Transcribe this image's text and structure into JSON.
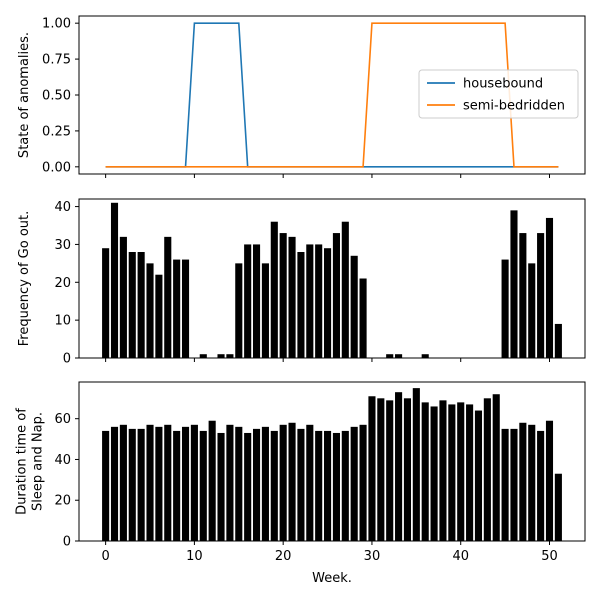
{
  "chart_data": [
    {
      "type": "line",
      "title": "",
      "xlabel": "",
      "ylabel": "State of anomalies.",
      "xlim": [
        -3,
        54
      ],
      "ylim": [
        -0.05,
        1.05
      ],
      "yticks": [
        0.0,
        0.25,
        0.5,
        0.75,
        1.0
      ],
      "ytick_labels": [
        "0.00",
        "0.25",
        "0.50",
        "0.75",
        "1.00"
      ],
      "legend_position": "center-right",
      "series": [
        {
          "name": "housebound",
          "color": "#1f77b4",
          "x": [
            0,
            1,
            2,
            3,
            4,
            5,
            6,
            7,
            8,
            9,
            10,
            11,
            12,
            13,
            14,
            15,
            16,
            17,
            18,
            19,
            20,
            21,
            22,
            23,
            24,
            25,
            26,
            27,
            28,
            29,
            30,
            31,
            32,
            33,
            34,
            35,
            36,
            37,
            38,
            39,
            40,
            41,
            42,
            43,
            44,
            45,
            46,
            47,
            48,
            49,
            50,
            51
          ],
          "values": [
            0,
            0,
            0,
            0,
            0,
            0,
            0,
            0,
            0,
            0,
            1,
            1,
            1,
            1,
            1,
            1,
            0,
            0,
            0,
            0,
            0,
            0,
            0,
            0,
            0,
            0,
            0,
            0,
            0,
            0,
            0,
            0,
            0,
            0,
            0,
            0,
            0,
            0,
            0,
            0,
            0,
            0,
            0,
            0,
            0,
            0,
            0,
            0,
            0,
            0,
            0,
            0
          ]
        },
        {
          "name": "semi-bedridden",
          "color": "#ff7f0e",
          "x": [
            0,
            1,
            2,
            3,
            4,
            5,
            6,
            7,
            8,
            9,
            10,
            11,
            12,
            13,
            14,
            15,
            16,
            17,
            18,
            19,
            20,
            21,
            22,
            23,
            24,
            25,
            26,
            27,
            28,
            29,
            30,
            31,
            32,
            33,
            34,
            35,
            36,
            37,
            38,
            39,
            40,
            41,
            42,
            43,
            44,
            45,
            46,
            47,
            48,
            49,
            50,
            51
          ],
          "values": [
            0,
            0,
            0,
            0,
            0,
            0,
            0,
            0,
            0,
            0,
            0,
            0,
            0,
            0,
            0,
            0,
            0,
            0,
            0,
            0,
            0,
            0,
            0,
            0,
            0,
            0,
            0,
            0,
            0,
            0,
            1,
            1,
            1,
            1,
            1,
            1,
            1,
            1,
            1,
            1,
            1,
            1,
            1,
            1,
            1,
            1,
            0,
            0,
            0,
            0,
            0,
            0
          ]
        }
      ]
    },
    {
      "type": "bar",
      "title": "",
      "xlabel": "",
      "ylabel": "Frequency of Go out.",
      "xlim": [
        -3,
        54
      ],
      "ylim": [
        0,
        42
      ],
      "yticks": [
        0,
        10,
        20,
        30,
        40
      ],
      "ytick_labels": [
        "0",
        "10",
        "20",
        "30",
        "40"
      ],
      "color": "#000000",
      "x": [
        0,
        1,
        2,
        3,
        4,
        5,
        6,
        7,
        8,
        9,
        10,
        11,
        12,
        13,
        14,
        15,
        16,
        17,
        18,
        19,
        20,
        21,
        22,
        23,
        24,
        25,
        26,
        27,
        28,
        29,
        30,
        31,
        32,
        33,
        34,
        35,
        36,
        37,
        38,
        39,
        40,
        41,
        42,
        43,
        44,
        45,
        46,
        47,
        48,
        49,
        50,
        51
      ],
      "values": [
        29,
        41,
        32,
        28,
        28,
        25,
        22,
        32,
        26,
        26,
        0,
        1,
        0,
        1,
        1,
        25,
        30,
        30,
        25,
        36,
        33,
        32,
        28,
        30,
        30,
        29,
        33,
        36,
        27,
        21,
        0,
        0,
        1,
        1,
        0,
        0,
        1,
        0,
        0,
        0,
        0,
        0,
        0,
        0,
        0,
        26,
        39,
        33,
        25,
        33,
        37,
        9
      ]
    },
    {
      "type": "bar",
      "title": "",
      "xlabel": "Week.",
      "ylabel": "Duration time of\nSleep and Nap.",
      "ylabel_lines": [
        "Duration time of",
        "Sleep and Nap."
      ],
      "xlim": [
        -3,
        54
      ],
      "ylim": [
        0,
        78
      ],
      "yticks": [
        0,
        20,
        40,
        60
      ],
      "ytick_labels": [
        "0",
        "20",
        "40",
        "60"
      ],
      "xticks": [
        0,
        10,
        20,
        30,
        40,
        50
      ],
      "xtick_labels": [
        "0",
        "10",
        "20",
        "30",
        "40",
        "50"
      ],
      "color": "#000000",
      "x": [
        0,
        1,
        2,
        3,
        4,
        5,
        6,
        7,
        8,
        9,
        10,
        11,
        12,
        13,
        14,
        15,
        16,
        17,
        18,
        19,
        20,
        21,
        22,
        23,
        24,
        25,
        26,
        27,
        28,
        29,
        30,
        31,
        32,
        33,
        34,
        35,
        36,
        37,
        38,
        39,
        40,
        41,
        42,
        43,
        44,
        45,
        46,
        47,
        48,
        49,
        50,
        51
      ],
      "values": [
        54,
        56,
        57,
        55,
        55,
        57,
        56,
        57,
        54,
        56,
        57,
        54,
        59,
        53,
        57,
        56,
        53,
        55,
        56,
        54,
        57,
        58,
        55,
        57,
        54,
        54,
        53,
        54,
        56,
        57,
        71,
        70,
        69,
        73,
        70,
        75,
        68,
        66,
        69,
        67,
        68,
        67,
        64,
        70,
        72,
        55,
        55,
        58,
        57,
        54,
        59,
        33
      ]
    }
  ]
}
